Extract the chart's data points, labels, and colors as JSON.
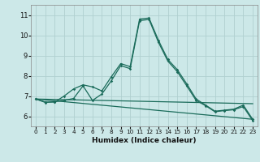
{
  "xlabel": "Humidex (Indice chaleur)",
  "background_color": "#cce8e8",
  "grid_color": "#b0d0d0",
  "line_color": "#1a6b5a",
  "xlim": [
    -0.5,
    23.5
  ],
  "ylim": [
    5.5,
    11.5
  ],
  "xticks": [
    0,
    1,
    2,
    3,
    4,
    5,
    6,
    7,
    8,
    9,
    10,
    11,
    12,
    13,
    14,
    15,
    16,
    17,
    18,
    19,
    20,
    21,
    22,
    23
  ],
  "yticks": [
    6,
    7,
    8,
    9,
    10,
    11
  ],
  "series1_x": [
    0,
    1,
    2,
    3,
    4,
    5,
    6,
    7,
    8,
    9,
    10,
    11,
    12,
    13,
    14,
    15,
    16,
    17,
    18,
    19,
    20,
    21,
    22,
    23
  ],
  "series1_y": [
    6.85,
    6.7,
    6.7,
    7.0,
    7.35,
    7.55,
    7.45,
    7.25,
    7.95,
    8.6,
    8.45,
    10.8,
    10.85,
    9.75,
    8.8,
    8.3,
    7.6,
    6.85,
    6.55,
    6.25,
    6.3,
    6.35,
    6.55,
    5.85
  ],
  "series2_x": [
    0,
    1,
    2,
    3,
    4,
    5,
    6,
    7,
    8,
    9,
    10,
    11,
    12,
    13,
    14,
    15,
    16,
    17,
    18,
    19,
    20,
    21,
    22,
    23
  ],
  "series2_y": [
    6.85,
    6.68,
    6.72,
    6.78,
    6.88,
    7.5,
    6.78,
    7.1,
    7.75,
    8.5,
    8.35,
    10.72,
    10.78,
    9.65,
    8.72,
    8.2,
    7.5,
    6.78,
    6.52,
    6.22,
    6.28,
    6.32,
    6.48,
    5.78
  ],
  "series3_x": [
    0,
    23
  ],
  "series3_y": [
    6.85,
    6.62
  ],
  "series4_x": [
    0,
    23
  ],
  "series4_y": [
    6.85,
    5.85
  ]
}
